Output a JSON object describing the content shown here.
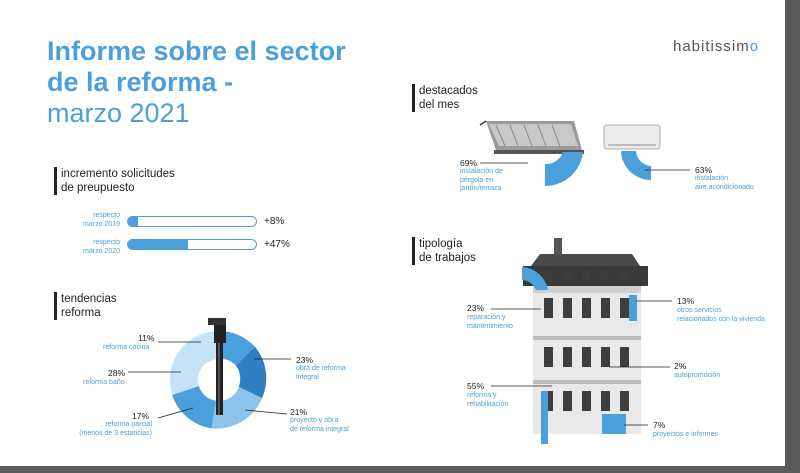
{
  "title": {
    "line1": "Informe sobre el sector",
    "line2": "de la reforma -",
    "line3": "marzo 2021"
  },
  "logo": {
    "text_a": "habitissim",
    "text_b": "o"
  },
  "solicitudes": {
    "heading1": "incremento solicitudes",
    "heading2": "de preupuesto",
    "rows": [
      {
        "label1": "respecto",
        "label2": "marzo 2019",
        "value": "+8%",
        "fill_fraction": 0.08
      },
      {
        "label1": "respecto",
        "label2": "marzo 2020",
        "value": "+47%",
        "fill_fraction": 0.47
      }
    ]
  },
  "tendencias": {
    "heading1": "tendencias",
    "heading2": "reforma",
    "items": [
      {
        "pct": "11%",
        "label1": "reforma cocina",
        "label2": ""
      },
      {
        "pct": "28%",
        "label1": "reforma baño",
        "label2": ""
      },
      {
        "pct": "17%",
        "label1": "reforma parcial",
        "label2": "(menos de 3 estancias)"
      },
      {
        "pct": "23%",
        "label1": "obra de reforma",
        "label2": "integral"
      },
      {
        "pct": "21%",
        "label1": "proyecto y obra",
        "label2": "de reforma integral"
      }
    ]
  },
  "destacados": {
    "heading1": "destacados",
    "heading2": "del mes",
    "items": [
      {
        "pct": "69%",
        "label1": "instalación de",
        "label2": "pérgola en",
        "label3": "jardín/terraza"
      },
      {
        "pct": "63%",
        "label1": "instalación",
        "label2": "aire acondicionado",
        "label3": ""
      }
    ]
  },
  "tipologia": {
    "heading1": "tipología",
    "heading2": "de trabajos",
    "items": [
      {
        "pct": "23%",
        "label1": "reparación y",
        "label2": "mantenimiento"
      },
      {
        "pct": "55%",
        "label1": "reforma y",
        "label2": "rehabilitación"
      },
      {
        "pct": "13%",
        "label1": "otros servicios",
        "label2": "relacionados con la vivienda"
      },
      {
        "pct": "2%",
        "label1": "autopromoción",
        "label2": ""
      },
      {
        "pct": "7%",
        "label1": "proyectos e informes",
        "label2": ""
      }
    ]
  },
  "colors": {
    "accent": "#4ba0dc",
    "light": "#8cc4ec",
    "pale": "#c6e2f6",
    "dark": "#222222"
  }
}
